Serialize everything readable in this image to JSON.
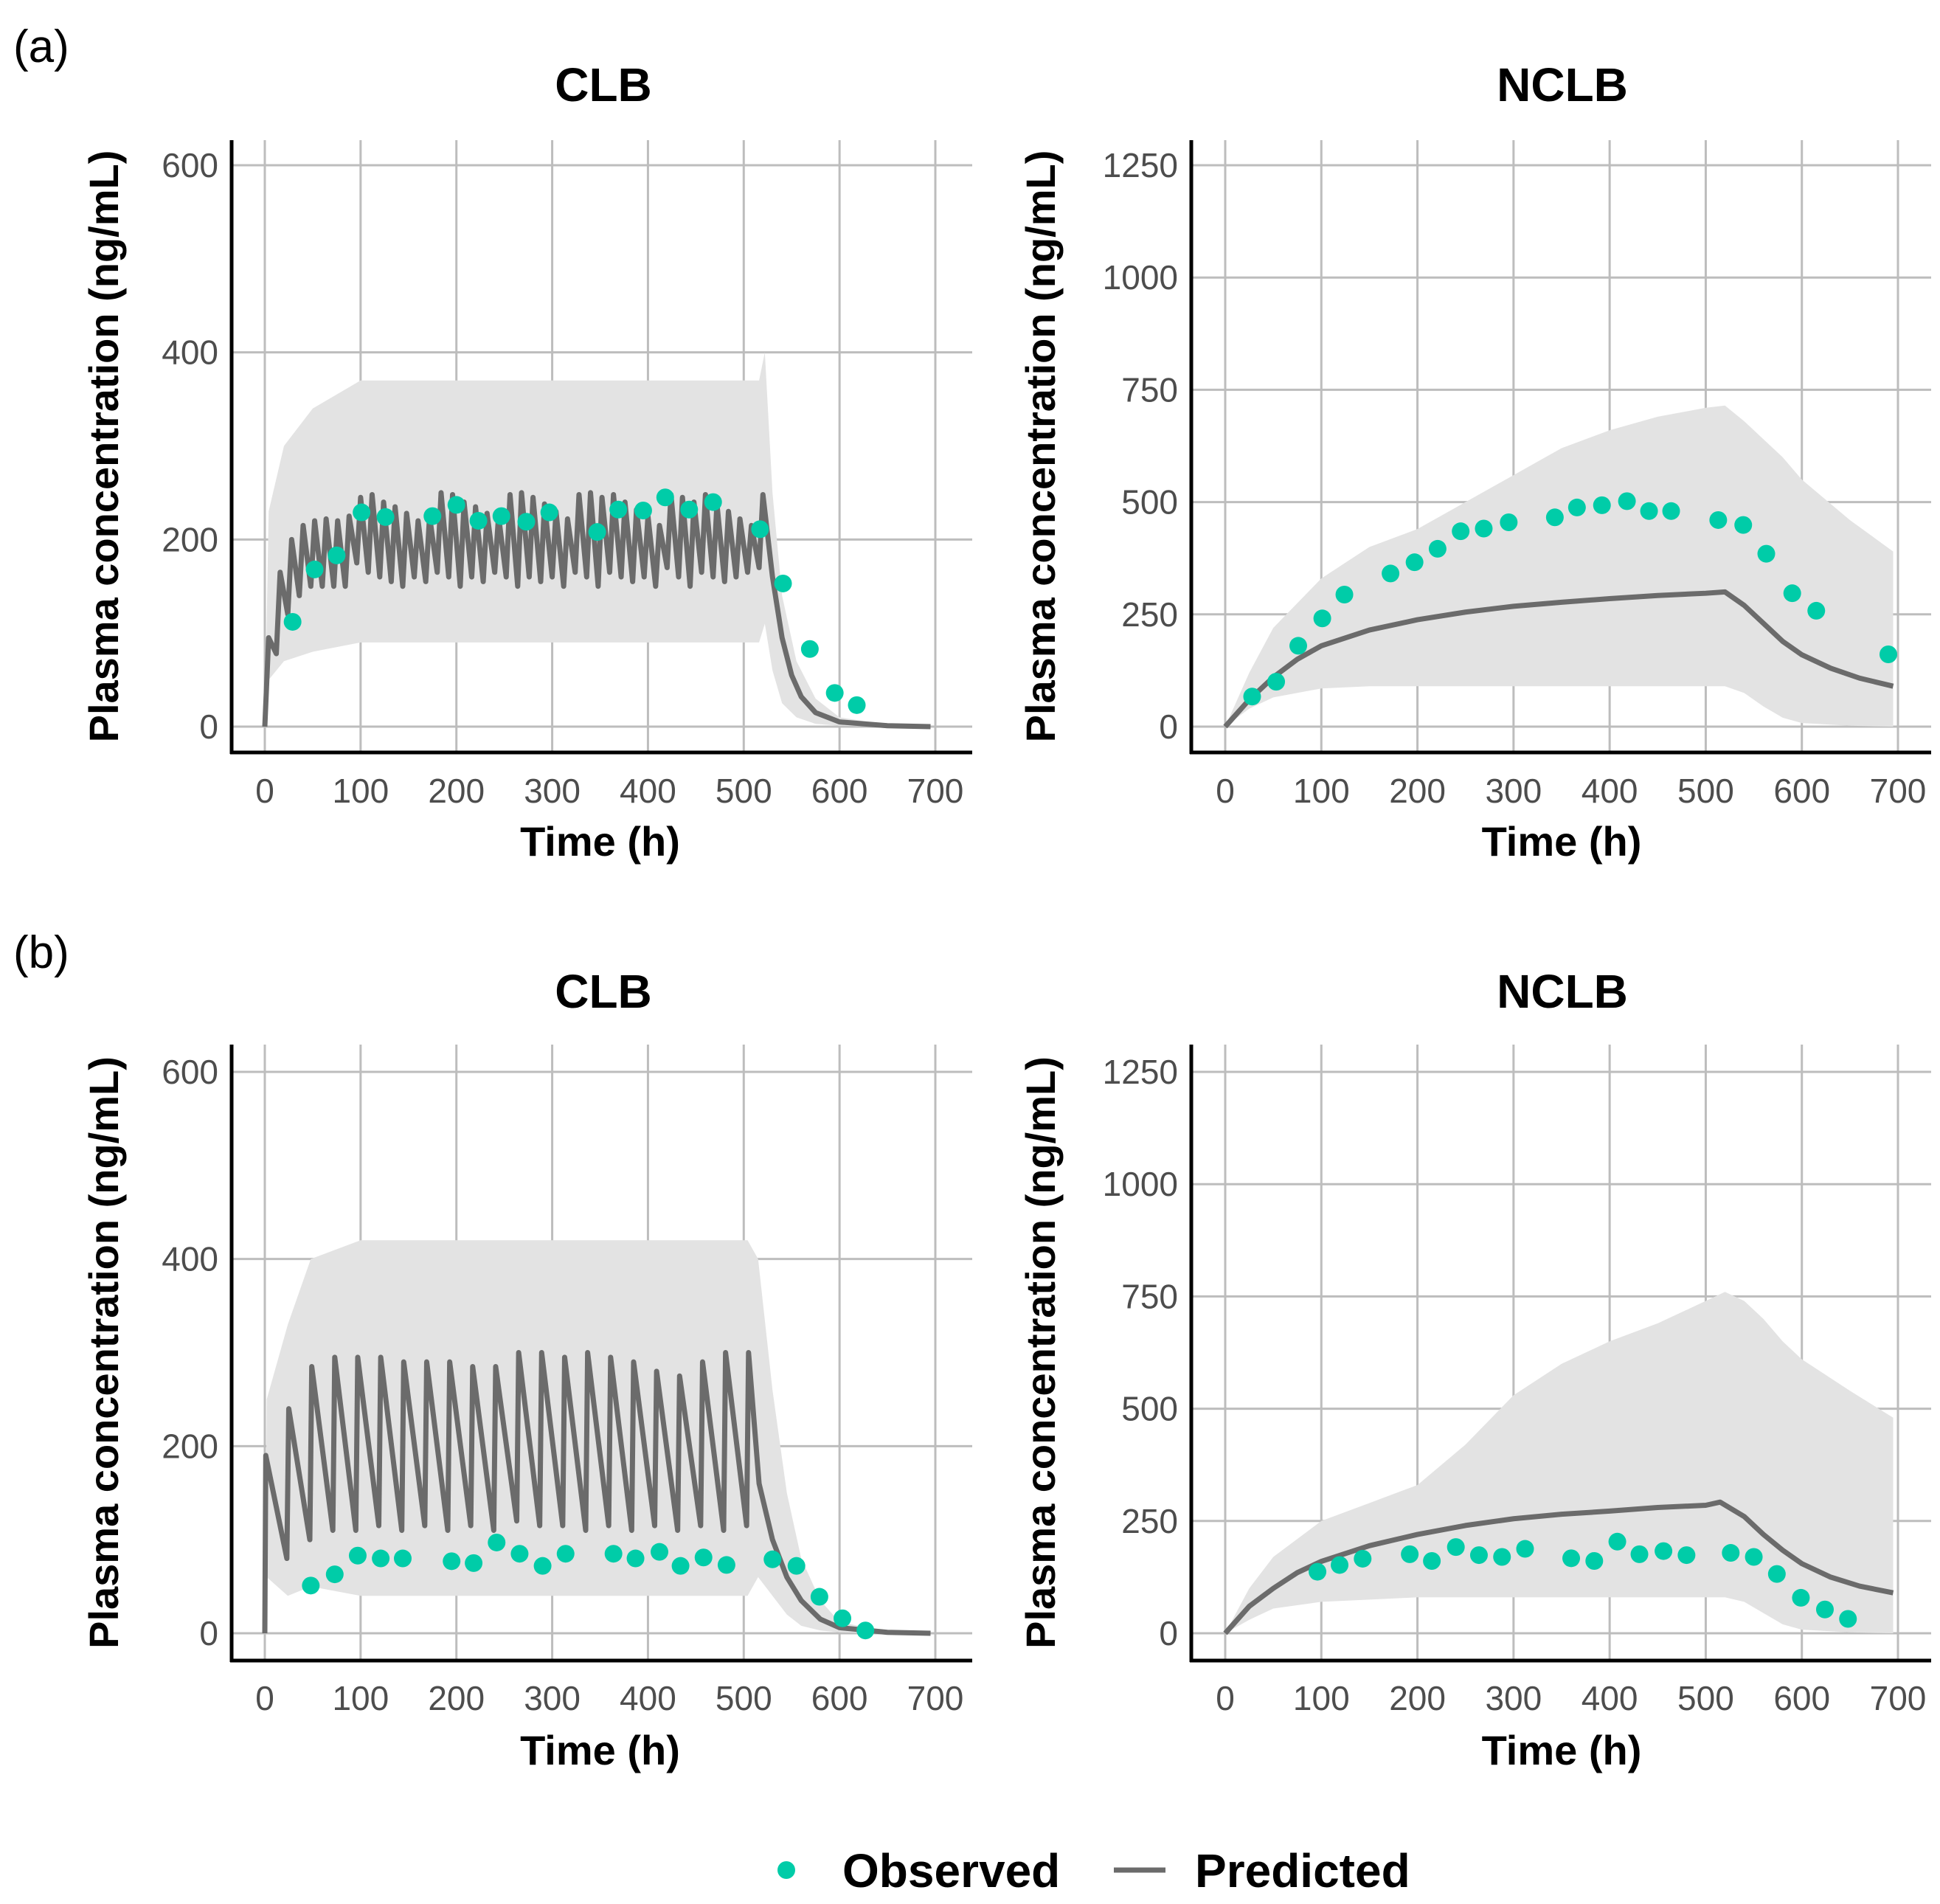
{
  "colors": {
    "observed": "#00CCA8",
    "predicted": "#6b6b6b",
    "band": "#e3e3e3",
    "grid": "#bdbdbd"
  },
  "legend": {
    "observed": "Observed",
    "predicted": "Predicted"
  },
  "panel_labels": [
    "(a)",
    "(b)"
  ],
  "chart_data": [
    {
      "type": "line",
      "panel": "(a)",
      "title": "CLB",
      "xlabel": "Time (h)",
      "ylabel": "Plasma concentration (ng/mL)",
      "xlim": [
        0,
        700
      ],
      "ylim": [
        0,
        600
      ],
      "xticks": [
        0,
        100,
        200,
        300,
        400,
        500,
        600,
        700
      ],
      "yticks": [
        0,
        200,
        400,
        600
      ],
      "observed": {
        "t": [
          29,
          52,
          75,
          101,
          126,
          175,
          200,
          223,
          247,
          273,
          297,
          347,
          369,
          395,
          418,
          443,
          468,
          517,
          541,
          569,
          595,
          618
        ],
        "c": [
          112,
          168,
          183,
          229,
          224,
          225,
          237,
          220,
          225,
          219,
          229,
          208,
          232,
          231,
          245,
          232,
          240,
          211,
          153,
          83,
          36,
          23
        ]
      },
      "predicted": {
        "t": [
          0,
          4,
          12,
          16,
          24,
          28,
          36,
          40,
          48,
          52,
          60,
          64,
          72,
          76,
          84,
          88,
          96,
          100,
          108,
          112,
          120,
          124,
          132,
          136,
          144,
          148,
          156,
          160,
          168,
          172,
          180,
          184,
          192,
          196,
          204,
          208,
          216,
          220,
          228,
          232,
          240,
          244,
          252,
          256,
          264,
          268,
          276,
          280,
          288,
          292,
          300,
          304,
          312,
          316,
          324,
          328,
          336,
          340,
          348,
          352,
          360,
          364,
          372,
          376,
          384,
          388,
          396,
          400,
          408,
          412,
          420,
          424,
          432,
          436,
          444,
          448,
          456,
          460,
          468,
          472,
          480,
          484,
          492,
          496,
          504,
          508,
          516,
          520,
          530,
          540,
          550,
          560,
          575,
          600,
          650,
          695
        ],
        "c": [
          0,
          95,
          78,
          165,
          120,
          200,
          140,
          215,
          150,
          220,
          150,
          222,
          150,
          220,
          150,
          225,
          175,
          245,
          165,
          248,
          160,
          240,
          155,
          235,
          150,
          228,
          160,
          220,
          155,
          225,
          165,
          250,
          160,
          248,
          150,
          240,
          160,
          235,
          155,
          228,
          165,
          225,
          160,
          248,
          150,
          250,
          160,
          245,
          155,
          238,
          160,
          230,
          150,
          222,
          165,
          248,
          160,
          250,
          150,
          245,
          165,
          248,
          160,
          240,
          155,
          232,
          160,
          225,
          150,
          215,
          170,
          248,
          160,
          245,
          150,
          240,
          165,
          248,
          160,
          238,
          155,
          230,
          160,
          222,
          165,
          215,
          170,
          248,
          160,
          95,
          55,
          32,
          15,
          5,
          1,
          0
        ]
      },
      "band": {
        "t": [
          0,
          4,
          20,
          50,
          100,
          200,
          300,
          400,
          516,
          522,
          530,
          540,
          555,
          575,
          600,
          650,
          695
        ],
        "lo": [
          0,
          50,
          70,
          80,
          90,
          90,
          90,
          90,
          90,
          110,
          60,
          25,
          10,
          3,
          1,
          0,
          0
        ],
        "hi": [
          0,
          230,
          300,
          340,
          370,
          370,
          370,
          370,
          370,
          400,
          250,
          140,
          70,
          30,
          10,
          2,
          0
        ]
      }
    },
    {
      "type": "line",
      "panel": "(a)",
      "title": "NCLB",
      "xlabel": "Time (h)",
      "ylabel": "Plasma concentration (ng/mL)",
      "xlim": [
        0,
        700
      ],
      "ylim": [
        0,
        1250
      ],
      "xticks": [
        0,
        100,
        200,
        300,
        400,
        500,
        600,
        700
      ],
      "yticks": [
        0,
        250,
        500,
        750,
        1000,
        1250
      ],
      "observed": {
        "t": [
          28,
          53,
          76,
          101,
          124,
          172,
          197,
          221,
          245,
          269,
          295,
          343,
          366,
          392,
          418,
          441,
          464,
          513,
          539,
          563,
          590,
          615,
          690
        ],
        "c": [
          67,
          100,
          180,
          241,
          294,
          341,
          366,
          396,
          435,
          441,
          455,
          466,
          488,
          493,
          502,
          480,
          480,
          460,
          449,
          385,
          297,
          258,
          161
        ]
      },
      "predicted": {
        "t": [
          0,
          25,
          50,
          75,
          100,
          150,
          200,
          250,
          300,
          350,
          400,
          450,
          500,
          520,
          540,
          560,
          580,
          600,
          630,
          660,
          695
        ],
        "c": [
          0,
          60,
          110,
          150,
          180,
          215,
          238,
          255,
          268,
          277,
          285,
          292,
          297,
          300,
          270,
          230,
          190,
          160,
          130,
          108,
          90
        ]
      },
      "band": {
        "t": [
          0,
          25,
          50,
          100,
          150,
          200,
          250,
          300,
          350,
          400,
          450,
          500,
          520,
          540,
          560,
          580,
          600,
          650,
          695
        ],
        "lo": [
          0,
          40,
          65,
          85,
          90,
          90,
          90,
          90,
          90,
          90,
          90,
          90,
          90,
          75,
          45,
          20,
          8,
          2,
          0
        ],
        "hi": [
          0,
          120,
          220,
          330,
          400,
          440,
          500,
          560,
          620,
          660,
          690,
          710,
          715,
          680,
          640,
          600,
          550,
          460,
          390
        ]
      }
    },
    {
      "type": "line",
      "panel": "(b)",
      "title": "CLB",
      "xlabel": "Time (h)",
      "ylabel": "Plasma concentration (ng/mL)",
      "xlim": [
        0,
        700
      ],
      "ylim": [
        0,
        600
      ],
      "xticks": [
        0,
        100,
        200,
        300,
        400,
        500,
        600,
        700
      ],
      "yticks": [
        0,
        200,
        400,
        600
      ],
      "observed": {
        "t": [
          48,
          73,
          97,
          121,
          144,
          195,
          218,
          242,
          266,
          290,
          314,
          364,
          387,
          412,
          434,
          458,
          482,
          530,
          555,
          579,
          603,
          627
        ],
        "c": [
          51,
          63,
          83,
          80,
          80,
          77,
          75,
          97,
          85,
          72,
          85,
          85,
          80,
          87,
          72,
          81,
          73,
          79,
          72,
          39,
          16,
          3
        ]
      },
      "predicted": {
        "t": [
          0,
          1,
          23,
          25,
          47,
          49,
          71,
          73,
          95,
          97,
          119,
          121,
          143,
          145,
          167,
          169,
          191,
          193,
          215,
          217,
          239,
          241,
          263,
          265,
          287,
          289,
          311,
          313,
          335,
          337,
          359,
          361,
          383,
          385,
          407,
          409,
          431,
          433,
          455,
          457,
          479,
          481,
          503,
          505,
          516,
          530,
          545,
          560,
          580,
          600,
          650,
          695
        ],
        "c": [
          0,
          190,
          80,
          240,
          100,
          285,
          110,
          295,
          110,
          295,
          115,
          295,
          110,
          290,
          115,
          290,
          110,
          290,
          115,
          285,
          110,
          285,
          120,
          300,
          115,
          300,
          115,
          295,
          110,
          300,
          115,
          295,
          110,
          290,
          115,
          280,
          110,
          275,
          115,
          290,
          110,
          300,
          115,
          300,
          160,
          100,
          60,
          35,
          15,
          6,
          1,
          0
        ]
      },
      "band": {
        "t": [
          0,
          2,
          24,
          48,
          100,
          200,
          300,
          400,
          504,
          515,
          530,
          545,
          560,
          580,
          600,
          650,
          695
        ],
        "lo": [
          0,
          60,
          40,
          50,
          40,
          40,
          40,
          40,
          40,
          60,
          40,
          20,
          8,
          3,
          1,
          0,
          0
        ],
        "hi": [
          0,
          250,
          330,
          400,
          420,
          420,
          420,
          420,
          420,
          400,
          260,
          150,
          80,
          35,
          12,
          2,
          0
        ]
      }
    },
    {
      "type": "line",
      "panel": "(b)",
      "title": "NCLB",
      "xlabel": "Time (h)",
      "ylabel": "Plasma concentration (ng/mL)",
      "xlim": [
        0,
        700
      ],
      "ylim": [
        0,
        1250
      ],
      "xticks": [
        0,
        100,
        200,
        300,
        400,
        500,
        600,
        700
      ],
      "yticks": [
        0,
        250,
        500,
        750,
        1000,
        1250
      ],
      "observed": {
        "t": [
          96,
          119,
          143,
          192,
          215,
          240,
          264,
          288,
          312,
          360,
          384,
          408,
          431,
          456,
          480,
          526,
          550,
          574,
          599,
          624,
          648
        ],
        "c": [
          137,
          152,
          166,
          176,
          161,
          192,
          174,
          170,
          188,
          167,
          161,
          204,
          176,
          183,
          174,
          179,
          170,
          132,
          79,
          53,
          32
        ]
      },
      "predicted": {
        "t": [
          0,
          25,
          50,
          75,
          100,
          150,
          200,
          250,
          300,
          350,
          400,
          450,
          500,
          515,
          540,
          560,
          580,
          600,
          630,
          660,
          695
        ],
        "c": [
          0,
          60,
          100,
          135,
          160,
          195,
          220,
          240,
          255,
          265,
          272,
          280,
          285,
          292,
          260,
          220,
          185,
          155,
          125,
          105,
          90
        ]
      },
      "band": {
        "t": [
          0,
          25,
          50,
          100,
          150,
          200,
          250,
          300,
          350,
          400,
          450,
          500,
          520,
          540,
          560,
          580,
          600,
          650,
          695
        ],
        "lo": [
          0,
          30,
          55,
          70,
          75,
          80,
          80,
          80,
          80,
          80,
          80,
          80,
          80,
          70,
          45,
          20,
          8,
          2,
          0
        ],
        "hi": [
          0,
          100,
          170,
          250,
          290,
          330,
          420,
          530,
          600,
          650,
          690,
          740,
          760,
          740,
          700,
          650,
          610,
          540,
          480
        ]
      }
    }
  ]
}
